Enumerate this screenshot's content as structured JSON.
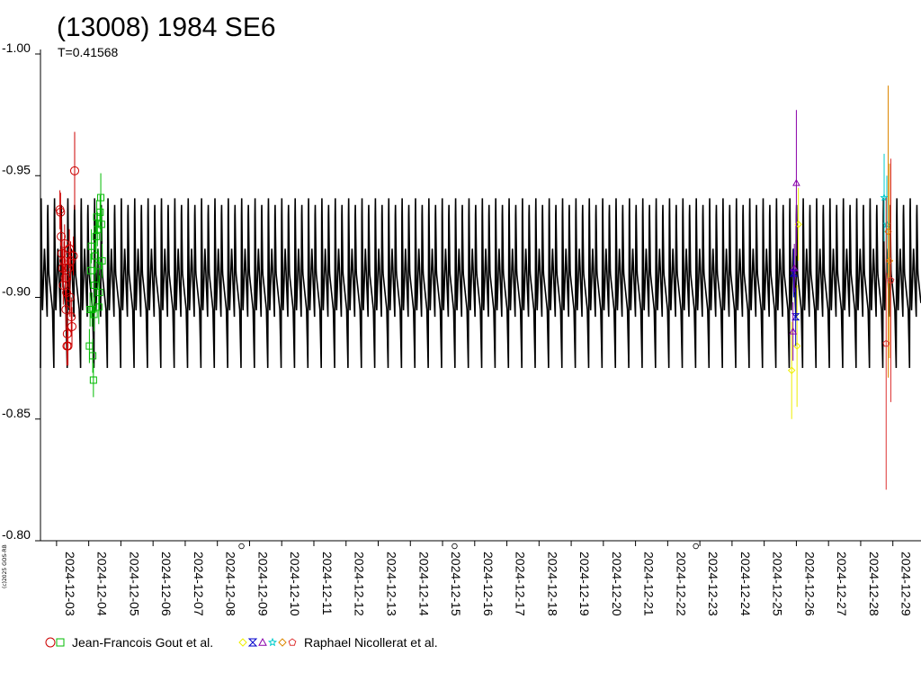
{
  "chart_data": {
    "type": "scatter",
    "title": "(13008) 1984 SE6",
    "subtitle": "T=0.41568",
    "copyright": "(c)2025 GOS-RB",
    "y_axis": {
      "inverted": true,
      "min": -1.0,
      "max": -0.8,
      "ticks": [
        "-1.00",
        "-0.95",
        "-0.90",
        "-0.85",
        "-0.80"
      ]
    },
    "x_axis": {
      "start": "2024-12-02T12:00",
      "end": "2024-12-29T21:00",
      "tick_labels": [
        "2024-12-03",
        "2024-12-04",
        "2024-12-05",
        "2024-12-06",
        "2024-12-07",
        "2024-12-08",
        "2024-12-09",
        "2024-12-10",
        "2024-12-11",
        "2024-12-12",
        "2024-12-13",
        "2024-12-14",
        "2024-12-15",
        "2024-12-16",
        "2024-12-17",
        "2024-12-18",
        "2024-12-19",
        "2024-12-20",
        "2024-12-21",
        "2024-12-22",
        "2024-12-23",
        "2024-12-24",
        "2024-12-25",
        "2024-12-26",
        "2024-12-27",
        "2024-12-28",
        "2024-12-29"
      ]
    },
    "model_curve": {
      "color": "#000000",
      "period_days": 0.41568,
      "mean": -0.905,
      "amplitude_max": -0.946,
      "amplitude_min": -0.871
    },
    "moon_phase_marks": [
      {
        "date": "2024-12-08T18:00",
        "symbol": "first-quarter"
      },
      {
        "date": "2024-12-15T09:00",
        "symbol": "full-moon"
      },
      {
        "date": "2024-12-22T21:00",
        "symbol": "last-quarter"
      }
    ],
    "legend": [
      {
        "label": "Jean-Francois Gout et al.",
        "markers": [
          {
            "shape": "circle",
            "color": "#cc0000"
          },
          {
            "shape": "square",
            "color": "#00bb00"
          }
        ]
      },
      {
        "label": "Raphael Nicollerat et al.",
        "markers": [
          {
            "shape": "diamond",
            "color": "#eeee00"
          },
          {
            "shape": "hourglass",
            "color": "#0000cc"
          },
          {
            "shape": "triangle",
            "color": "#8800aa"
          },
          {
            "shape": "star",
            "color": "#00cccc"
          },
          {
            "shape": "diamond",
            "color": "#dd8800"
          },
          {
            "shape": "pentagon",
            "color": "#dd3333"
          }
        ]
      }
    ],
    "series": [
      {
        "name": "Jean-Francois Gout et al.",
        "marker": "circle",
        "color": "#cc0000",
        "points": [
          {
            "x": "2024-12-03T03:00",
            "y": -0.935,
            "err": 0.008
          },
          {
            "x": "2024-12-03T03:30",
            "y": -0.925,
            "err": 0.008
          },
          {
            "x": "2024-12-03T04:00",
            "y": -0.918,
            "err": 0.008
          },
          {
            "x": "2024-12-03T04:30",
            "y": -0.912,
            "err": 0.008
          },
          {
            "x": "2024-12-03T05:00",
            "y": -0.905,
            "err": 0.008
          },
          {
            "x": "2024-12-03T05:30",
            "y": -0.915,
            "err": 0.008
          },
          {
            "x": "2024-12-03T06:00",
            "y": -0.922,
            "err": 0.008
          },
          {
            "x": "2024-12-03T06:30",
            "y": -0.908,
            "err": 0.008
          },
          {
            "x": "2024-12-03T07:00",
            "y": -0.895,
            "err": 0.008
          },
          {
            "x": "2024-12-03T07:30",
            "y": -0.902,
            "err": 0.008
          },
          {
            "x": "2024-12-03T08:00",
            "y": -0.885,
            "err": 0.008
          },
          {
            "x": "2024-12-03T08:30",
            "y": -0.88,
            "err": 0.008
          },
          {
            "x": "2024-12-03T09:00",
            "y": -0.912,
            "err": 0.008
          },
          {
            "x": "2024-12-03T09:30",
            "y": -0.92,
            "err": 0.008
          },
          {
            "x": "2024-12-03T10:00",
            "y": -0.9,
            "err": 0.008
          },
          {
            "x": "2024-12-03T10:30",
            "y": -0.915,
            "err": 0.008
          },
          {
            "x": "2024-12-03T11:00",
            "y": -0.892,
            "err": 0.008
          },
          {
            "x": "2024-12-03T11:30",
            "y": -0.888,
            "err": 0.008
          },
          {
            "x": "2024-12-03T12:30",
            "y": -0.917,
            "err": 0.008
          },
          {
            "x": "2024-12-03T13:30",
            "y": -0.952,
            "err": 0.016
          },
          {
            "x": "2024-12-03T02:30",
            "y": -0.936,
            "err": 0.008
          },
          {
            "x": "2024-12-03T07:45",
            "y": -0.88,
            "err": 0.008
          }
        ]
      },
      {
        "name": "Jean-Francois Gout et al.",
        "marker": "square",
        "color": "#00bb00",
        "points": [
          {
            "x": "2024-12-04T00:30",
            "y": -0.88,
            "err": 0.007
          },
          {
            "x": "2024-12-04T01:00",
            "y": -0.895,
            "err": 0.007
          },
          {
            "x": "2024-12-04T01:30",
            "y": -0.911,
            "err": 0.007
          },
          {
            "x": "2024-12-04T02:00",
            "y": -0.921,
            "err": 0.007
          },
          {
            "x": "2024-12-04T02:30",
            "y": -0.895,
            "err": 0.007
          },
          {
            "x": "2024-12-04T03:00",
            "y": -0.876,
            "err": 0.007
          },
          {
            "x": "2024-12-04T03:30",
            "y": -0.866,
            "err": 0.007
          },
          {
            "x": "2024-12-04T04:00",
            "y": -0.893,
            "err": 0.007
          },
          {
            "x": "2024-12-04T04:30",
            "y": -0.905,
            "err": 0.007
          },
          {
            "x": "2024-12-04T05:00",
            "y": -0.917,
            "err": 0.007
          },
          {
            "x": "2024-12-04T05:30",
            "y": -0.925,
            "err": 0.007
          },
          {
            "x": "2024-12-04T06:00",
            "y": -0.933,
            "err": 0.007
          },
          {
            "x": "2024-12-04T06:30",
            "y": -0.928,
            "err": 0.007
          },
          {
            "x": "2024-12-04T07:00",
            "y": -0.913,
            "err": 0.007
          },
          {
            "x": "2024-12-04T07:30",
            "y": -0.896,
            "err": 0.007
          },
          {
            "x": "2024-12-04T08:00",
            "y": -0.902,
            "err": 0.007
          },
          {
            "x": "2024-12-04T08:30",
            "y": -0.935,
            "err": 0.007
          },
          {
            "x": "2024-12-04T09:00",
            "y": -0.941,
            "err": 0.01
          },
          {
            "x": "2024-12-04T09:30",
            "y": -0.93,
            "err": 0.007
          },
          {
            "x": "2024-12-04T10:00",
            "y": -0.915,
            "err": 0.007
          }
        ]
      },
      {
        "name": "Raphael Nicollerat et al.",
        "marker": "diamond",
        "color": "#eeee00",
        "points": [
          {
            "x": "2024-12-25T20:30",
            "y": -0.87,
            "err": 0.02
          },
          {
            "x": "2024-12-26T00:30",
            "y": -0.88,
            "err": 0.025
          },
          {
            "x": "2024-12-26T01:30",
            "y": -0.93,
            "err": 0.015
          }
        ]
      },
      {
        "name": "Raphael Nicollerat et al.",
        "marker": "hourglass",
        "color": "#0000cc",
        "points": [
          {
            "x": "2024-12-25T22:00",
            "y": -0.91,
            "err": 0.01
          },
          {
            "x": "2024-12-25T23:30",
            "y": -0.892,
            "err": 0.012
          }
        ]
      },
      {
        "name": "Raphael Nicollerat et al.",
        "marker": "triangle",
        "color": "#8800aa",
        "points": [
          {
            "x": "2024-12-25T21:30",
            "y": -0.886,
            "err": 0.012
          },
          {
            "x": "2024-12-25T22:30",
            "y": -0.912,
            "err": 0.01
          },
          {
            "x": "2024-12-26T00:00",
            "y": -0.947,
            "err": 0.03
          }
        ]
      },
      {
        "name": "Raphael Nicollerat et al.",
        "marker": "star",
        "color": "#00cccc",
        "points": [
          {
            "x": "2024-12-28T17:30",
            "y": -0.941,
            "err": 0.018
          },
          {
            "x": "2024-12-28T19:30",
            "y": -0.93,
            "err": 0.02
          }
        ]
      },
      {
        "name": "Raphael Nicollerat et al.",
        "marker": "diamond",
        "color": "#dd8800",
        "points": [
          {
            "x": "2024-12-28T20:30",
            "y": -0.927,
            "err": 0.06
          },
          {
            "x": "2024-12-28T21:30",
            "y": -0.915,
            "err": 0.04
          }
        ]
      },
      {
        "name": "Raphael Nicollerat et al.",
        "marker": "pentagon",
        "color": "#dd3333",
        "points": [
          {
            "x": "2024-12-28T19:00",
            "y": -0.881,
            "err": 0.06
          },
          {
            "x": "2024-12-28T22:30",
            "y": -0.907,
            "err": 0.05
          }
        ]
      }
    ]
  }
}
